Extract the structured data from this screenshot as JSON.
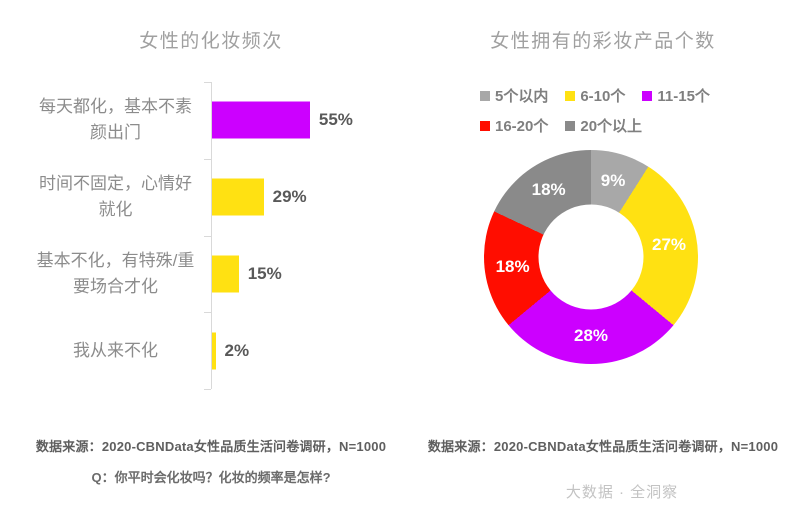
{
  "page": {
    "background": "#FFFFFF",
    "watermark": "大数据 · 全洞察"
  },
  "colors": {
    "magenta": "#CC00FF",
    "yellow": "#FFE112",
    "red": "#FF0D00",
    "gray_light": "#A8A8A8",
    "gray_dark": "#8A8A8A",
    "title_gray": "#A0A0A0",
    "category_gray": "#8C8C8C",
    "value_gray": "#595959",
    "axis_gray": "#D9D9D9"
  },
  "chart_data": [
    {
      "type": "bar",
      "orientation": "horizontal",
      "title": "女性的化妆频次",
      "categories": [
        "每天都化，基本不素颜出门",
        "时间不固定，心情好就化",
        "基本不化，有特殊/重要场合才化",
        "我从来不化"
      ],
      "values": [
        55,
        29,
        15,
        2
      ],
      "value_labels": [
        "55%",
        "29%",
        "15%",
        "2%"
      ],
      "bar_colors": [
        "#CC00FF",
        "#FFE112",
        "#FFE112",
        "#FFE112"
      ],
      "xlim": [
        0,
        100
      ],
      "grid": false,
      "legend": "none",
      "source": "数据来源：2020-CBNData女性品质生活问卷调研，N=1000",
      "question": "Q：你平时会化妆吗？化妆的频率是怎样?"
    },
    {
      "type": "pie",
      "subtype": "donut",
      "title": "女性拥有的彩妆产品个数",
      "categories": [
        "5个以内",
        "6-10个",
        "11-15个",
        "16-20个",
        "20个以上"
      ],
      "values": [
        9,
        27,
        28,
        18,
        18
      ],
      "value_labels": [
        "9%",
        "27%",
        "28%",
        "18%",
        "18%"
      ],
      "colors": [
        "#A8A8A8",
        "#FFE112",
        "#CC00FF",
        "#FF0D00",
        "#8A8A8A"
      ],
      "legend_position": "top",
      "legend_rows": [
        3,
        2
      ],
      "start_angle_deg": 0,
      "inner_radius_ratio": 0.49,
      "source": "数据来源：2020-CBNData女性品质生活问卷调研，N=1000"
    }
  ]
}
